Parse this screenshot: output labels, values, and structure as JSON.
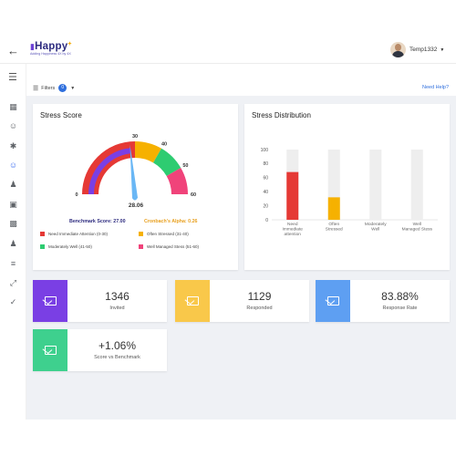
{
  "header": {
    "logo_text": "Happy",
    "logo_tagline": "Adding Happiness 4X by 4X",
    "username": "Temp1332"
  },
  "toolbar": {
    "filters_label": "Filters",
    "filters_count": "0",
    "help_label": "Need Help?"
  },
  "stress_score": {
    "title": "Stress Score",
    "score": "28.06",
    "benchmark_label": "Benchmark Score: 27.00",
    "alpha_label": "Cronbach's Alpha: 0.26",
    "tick_labels": [
      "0",
      "30",
      "40",
      "50",
      "60"
    ],
    "gauge": {
      "min": 0,
      "max": 60,
      "value": 28.06,
      "benchmark": 27
    },
    "legend": [
      {
        "label": "Need Immediate Attention (0-30)",
        "color": "#e53935"
      },
      {
        "label": "Often Stressed (31-40)",
        "color": "#f6b100"
      },
      {
        "label": "Moderately Well (41-50)",
        "color": "#2ecc71"
      },
      {
        "label": "Well Managed Stess (51-60)",
        "color": "#f0437a"
      }
    ]
  },
  "stress_distribution": {
    "title": "Stress Distribution",
    "chart_data": {
      "type": "bar",
      "categories": [
        "Need Immediate attention",
        "Often Stressed",
        "Moderately Well",
        "Well Managed Stess"
      ],
      "values": [
        68,
        32,
        0,
        0
      ],
      "ylim": [
        0,
        100
      ],
      "yticks": [
        "0",
        "20",
        "40",
        "60",
        "80",
        "100"
      ],
      "colors": [
        "#e53935",
        "#f6b100",
        "#2ecc71",
        "#f0437a"
      ]
    }
  },
  "stats": [
    {
      "value": "1346",
      "label": "Invited",
      "color": "#7a3fe4"
    },
    {
      "value": "1129",
      "label": "Responded",
      "color": "#f9c84a"
    },
    {
      "value": "83.88%",
      "label": "Response Rate",
      "color": "#5e9ff2"
    },
    {
      "value": "+1.06%",
      "label": "Score vs Benchmark",
      "color": "#3ed08e"
    }
  ],
  "sidebar": {
    "icons": [
      "dashboard-icon",
      "smiley-icon",
      "figure-icon",
      "mood-icon",
      "people-icon",
      "building-icon",
      "report-icon",
      "user-add-icon",
      "list-icon",
      "expand-icon",
      "check-circle-icon"
    ]
  }
}
